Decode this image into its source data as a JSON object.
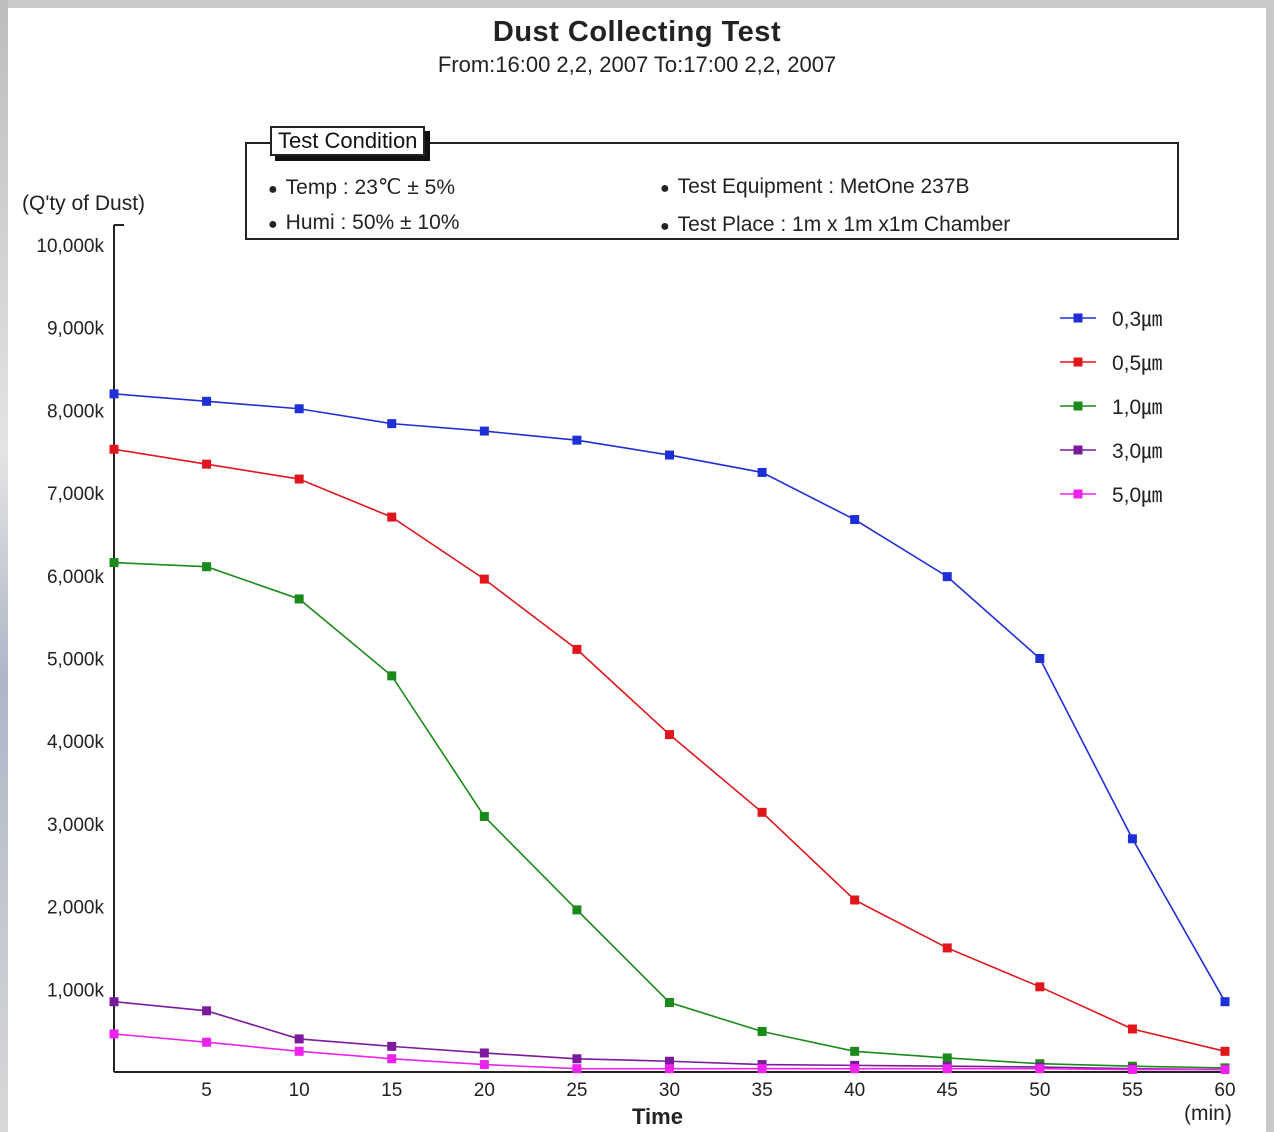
{
  "chart_data": {
    "type": "line",
    "title": "Dust Collecting Test",
    "subtitle": "From:16:00  2,2, 2007   To:17:00  2,2, 2007",
    "xlabel": "Time",
    "xunit": "(min)",
    "ylabel": "(Q'ty of Dust)",
    "ylim": [
      0,
      10000
    ],
    "xlim": [
      0,
      60
    ],
    "yticks": [
      "1,000k",
      "2,000k",
      "3,000k",
      "4,000k",
      "5,000k",
      "6,000k",
      "7,000k",
      "8,000k",
      "9,000k",
      "10,000k"
    ],
    "ytick_values": [
      1000,
      2000,
      3000,
      4000,
      5000,
      6000,
      7000,
      8000,
      9000,
      10000
    ],
    "xticks": [
      "5",
      "10",
      "15",
      "20",
      "25",
      "30",
      "35",
      "40",
      "45",
      "50",
      "55",
      "60"
    ],
    "xtick_values": [
      5,
      10,
      15,
      20,
      25,
      30,
      35,
      40,
      45,
      50,
      55,
      60
    ],
    "grid": false,
    "legend_position": "right",
    "x": [
      0,
      5,
      10,
      15,
      20,
      25,
      30,
      35,
      40,
      45,
      50,
      55,
      60
    ],
    "series": [
      {
        "name": "0,3㎛",
        "color": "#1f2fd6",
        "values": [
          8200,
          8110,
          8020,
          7840,
          7750,
          7640,
          7460,
          7250,
          6680,
          5990,
          5000,
          2820,
          850
        ]
      },
      {
        "name": "0,5㎛",
        "color": "#e0161c",
        "values": [
          7530,
          7350,
          7170,
          6710,
          5960,
          5110,
          4080,
          3140,
          2080,
          1500,
          1030,
          520,
          250
        ]
      },
      {
        "name": "1,0㎛",
        "color": "#1a8a1a",
        "values": [
          6160,
          6110,
          5720,
          4790,
          3090,
          1960,
          840,
          490,
          250,
          170,
          100,
          70,
          50
        ]
      },
      {
        "name": "3,0㎛",
        "color": "#7b1a9c",
        "values": [
          850,
          740,
          400,
          310,
          230,
          160,
          130,
          90,
          80,
          70,
          60,
          40,
          30
        ]
      },
      {
        "name": "5,0㎛",
        "color": "#ee22ee",
        "values": [
          460,
          360,
          250,
          160,
          90,
          40,
          40,
          40,
          40,
          40,
          40,
          30,
          30
        ]
      }
    ]
  },
  "test_condition": {
    "label": "Test Condition",
    "temp": "Temp  : 23℃  ± 5%",
    "humi": "Humi : 50% ± 10%",
    "equipment": "Test Equipment  :  MetOne 237B",
    "place": "Test Place : 1m x 1m x1m Chamber"
  }
}
